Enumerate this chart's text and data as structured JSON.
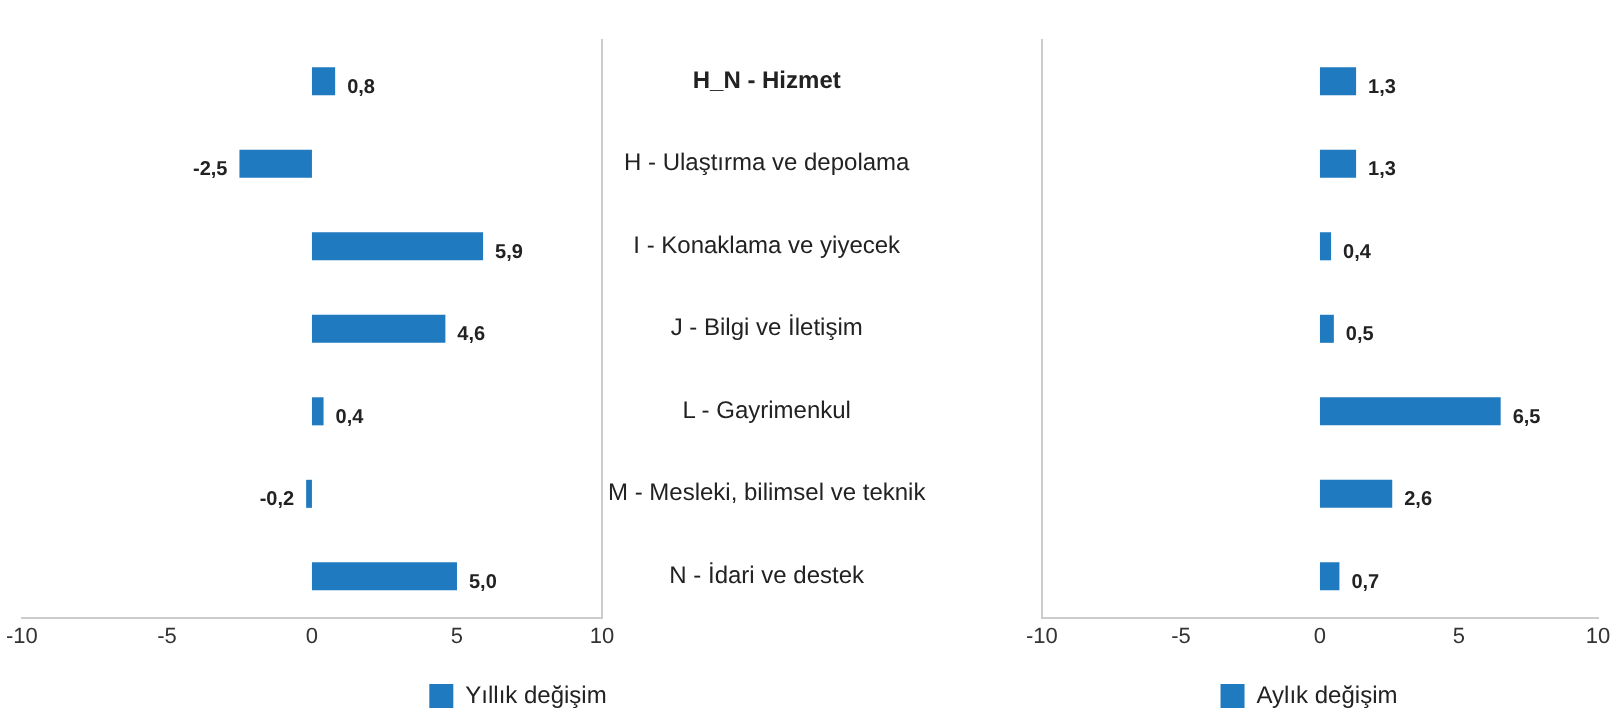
{
  "chart_data": [
    {
      "type": "bar",
      "orientation": "horizontal",
      "categories": [
        "H_N - Hizmet",
        "H - Ulaştırma ve depolama",
        "I - Konaklama ve yiyecek",
        "J - Bilgi ve İletişim",
        "L - Gayrimenkul",
        "M - Mesleki, bilimsel ve teknik",
        "N - İdari ve destek"
      ],
      "series": [
        {
          "name": "Yıllık değişim",
          "color": "#1f7ac0",
          "values": [
            0.8,
            -2.5,
            5.9,
            4.6,
            0.4,
            -0.2,
            5.0
          ],
          "value_labels": [
            "0,8",
            "-2,5",
            "5,9",
            "4,6",
            "0,4",
            "-0,2",
            "5,0"
          ]
        }
      ],
      "xlim": [
        -10,
        10
      ],
      "xticks": [
        -10,
        -5,
        0,
        5,
        10
      ],
      "grid": false,
      "legend": "bottom"
    },
    {
      "type": "bar",
      "orientation": "horizontal",
      "categories": [
        null,
        null,
        null,
        null,
        null,
        null,
        null
      ],
      "series": [
        {
          "name": "Aylık değişim",
          "color": "#1f7ac0",
          "values": [
            1.3,
            1.3,
            0.4,
            0.5,
            6.5,
            2.6,
            0.7
          ],
          "value_labels": [
            "1,3",
            "1,3",
            "0,4",
            "0,5",
            "6,5",
            "2,6",
            "0,7"
          ]
        }
      ],
      "xlim": [
        -10,
        10
      ],
      "xticks": [
        -10,
        -5,
        0,
        5,
        10
      ],
      "grid": false,
      "legend": "bottom",
      "tick_labels": "x"
    }
  ]
}
